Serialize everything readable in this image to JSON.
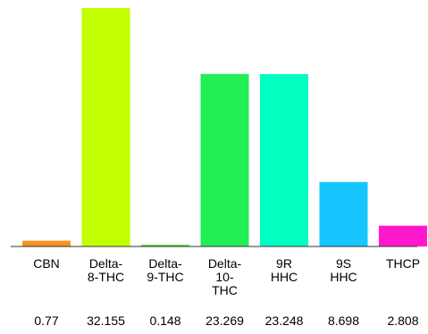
{
  "chart_data": {
    "type": "bar",
    "categories": [
      "CBN",
      "Delta-8-THC",
      "Delta-9-THC",
      "Delta-10-THC",
      "9R HHC",
      "9S HHC",
      "THCP"
    ],
    "category_labels": [
      "CBN",
      "Delta-\n8-THC",
      "Delta-\n9-THC",
      "Delta-\n10-\nTHC",
      "9R\nHHC",
      "9S\nHHC",
      "THCP"
    ],
    "values": [
      0.77,
      32.155,
      0.148,
      23.269,
      23.248,
      8.698,
      2.808
    ],
    "value_labels": [
      "0.77",
      "32.155",
      "0.148",
      "23.269",
      "23.248",
      "8.698",
      "2.808"
    ],
    "colors": [
      "#f7941d",
      "#c2ff00",
      "#55e030",
      "#22ee55",
      "#00ffc0",
      "#16c6ff",
      "#ff18cc"
    ],
    "axis_color": "#333333",
    "title": "",
    "xlabel": "",
    "ylabel": "",
    "ylim": [
      0,
      32.155
    ],
    "grid": false,
    "legend": "none"
  }
}
